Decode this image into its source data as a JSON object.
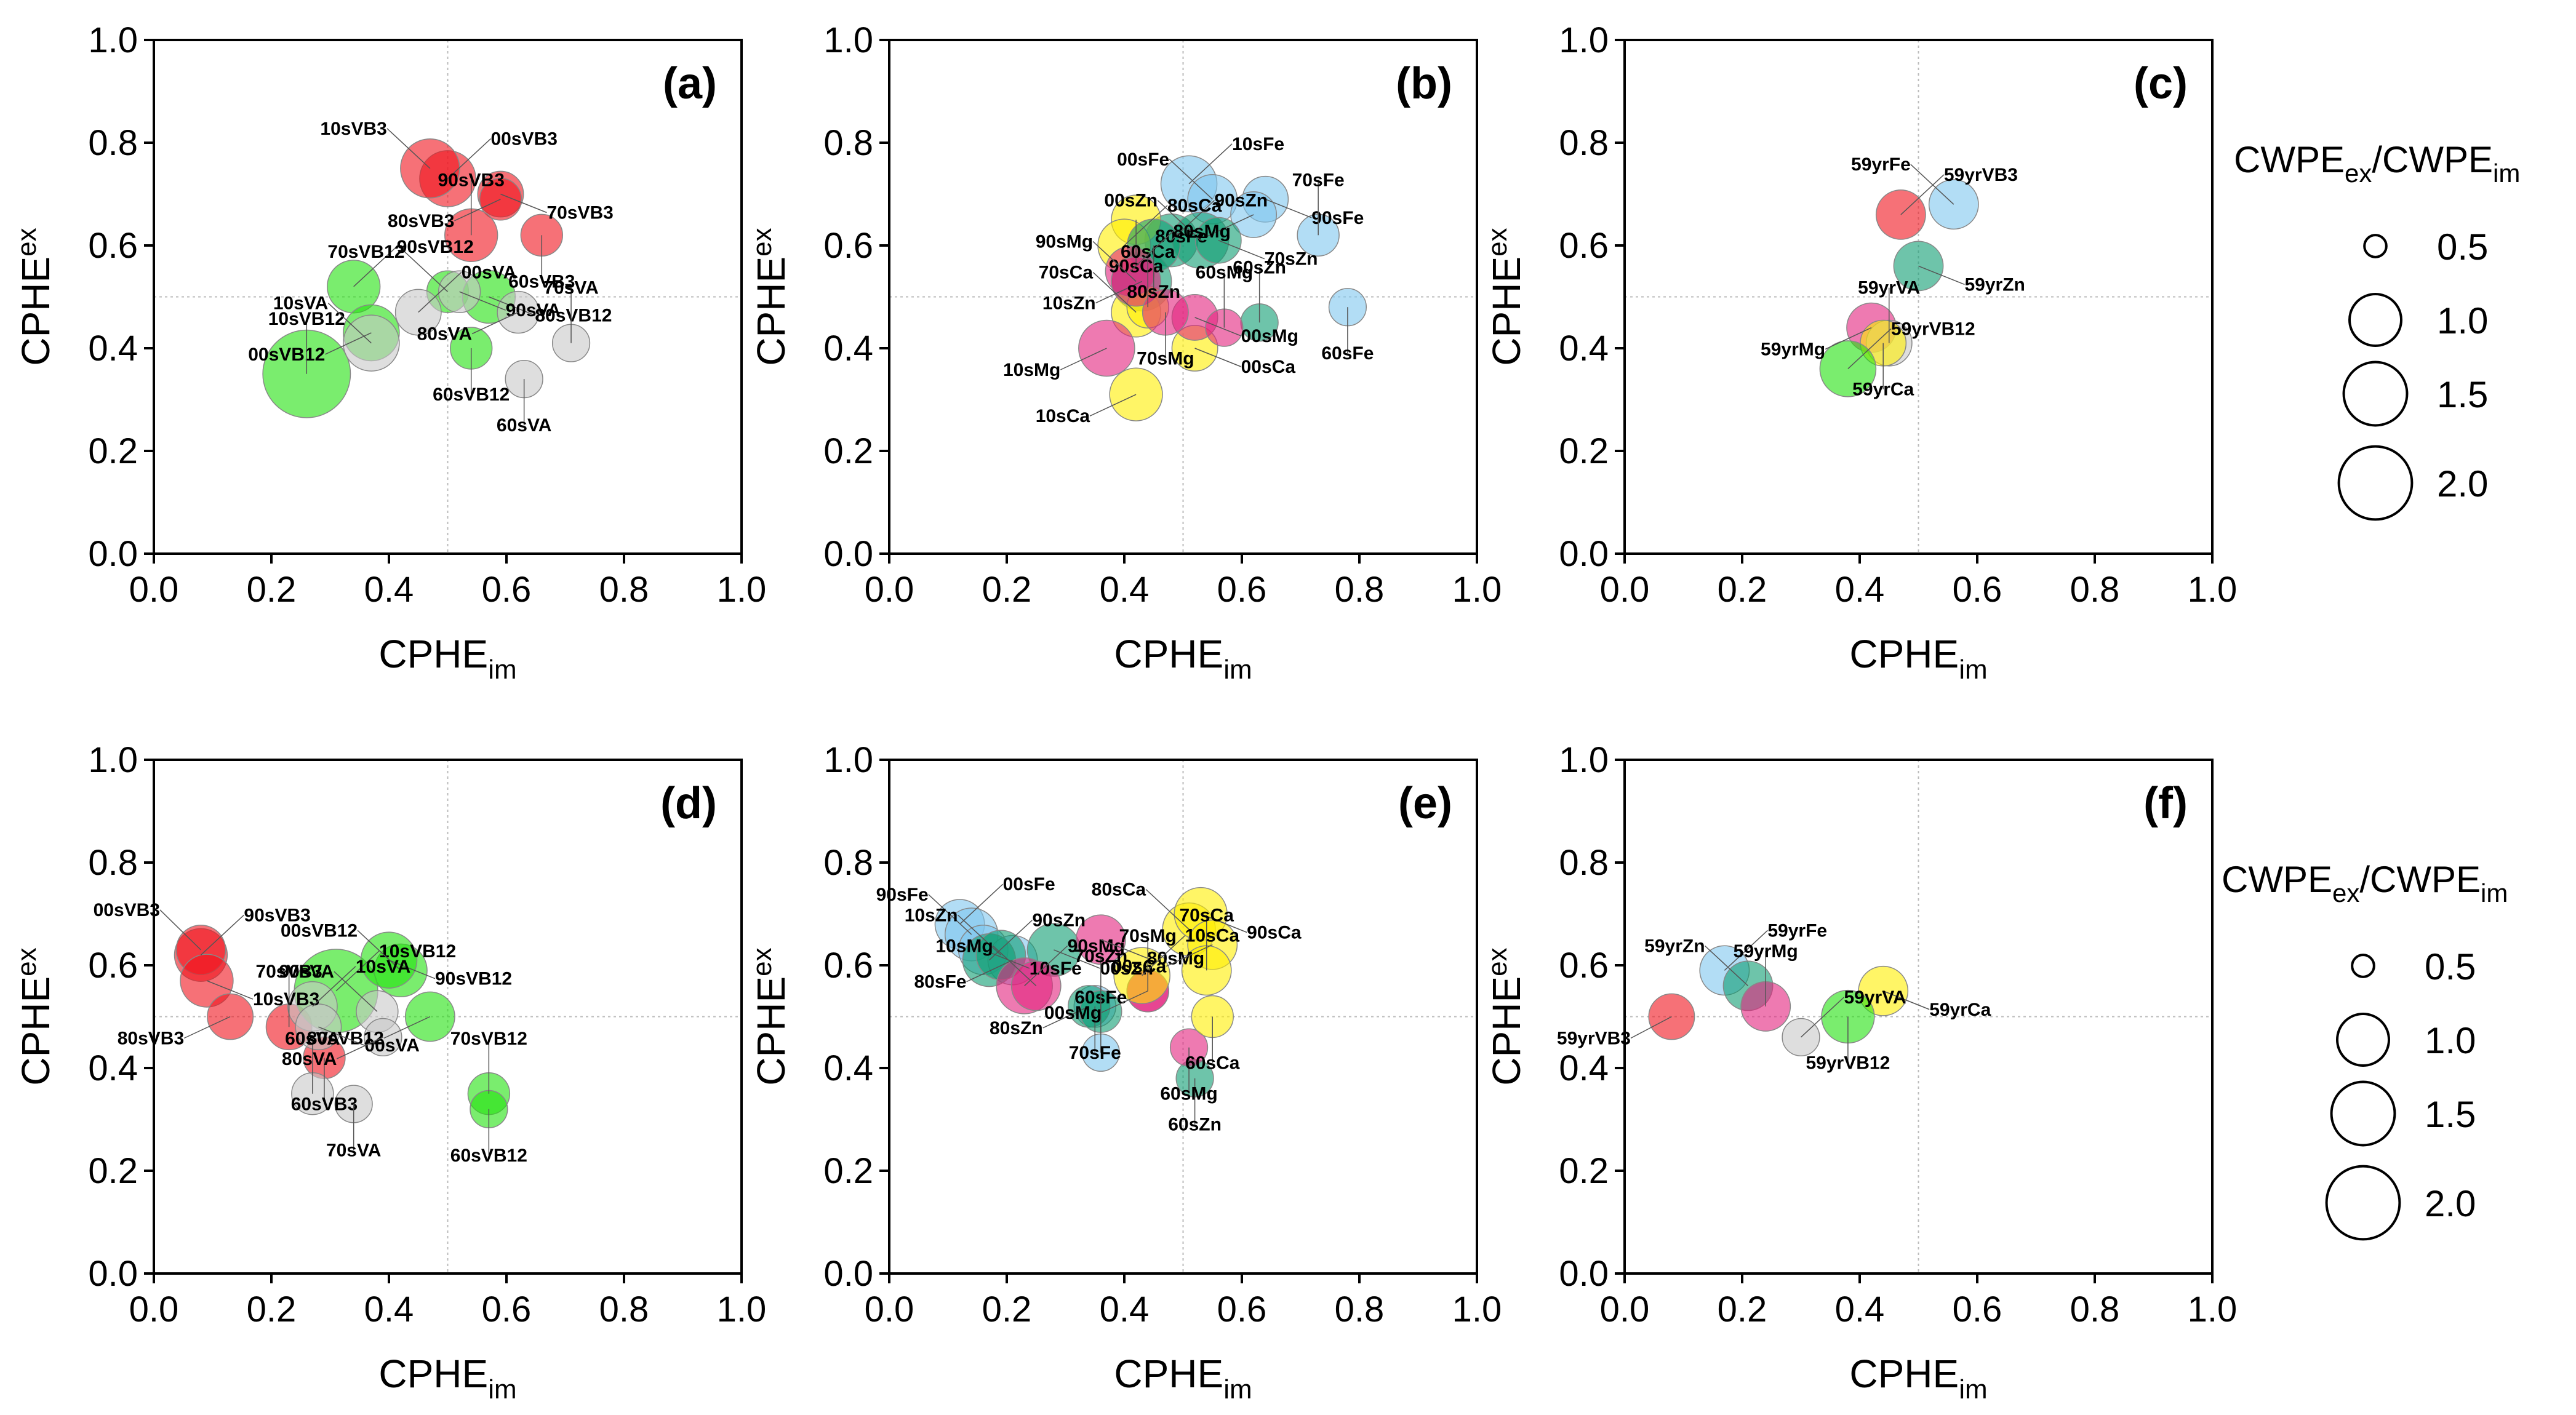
{
  "figure_title": "CPHE bubble plots",
  "colors": {
    "VB3": "#f0131c",
    "VB12": "#22e10e",
    "VA": "#c8c8c8",
    "Fe": "#7fc6ee",
    "Zn": "#0e9d71",
    "Mg": "#e2227d",
    "Ca": "#ffee00"
  },
  "chart_data": [
    {
      "panel": "(a)",
      "type": "scatter",
      "xlabel": "CPHE",
      "xlabel_sub": "im",
      "ylabel": "CPHE",
      "ylabel_sub": "ex",
      "xlim": [
        0,
        1
      ],
      "ylim": [
        0,
        1
      ],
      "xticks": [
        "0.0",
        "0.2",
        "0.4",
        "0.6",
        "0.8",
        "1.0"
      ],
      "yticks": [
        "0.0",
        "0.2",
        "0.4",
        "0.6",
        "0.8",
        "1.0"
      ],
      "points": [
        {
          "label": "00sVB3",
          "group": "VB3",
          "x": 0.5,
          "y": 0.73,
          "size": 0.9
        },
        {
          "label": "10sVB3",
          "group": "VB3",
          "x": 0.47,
          "y": 0.75,
          "size": 1.0
        },
        {
          "label": "70sVB3",
          "group": "VB3",
          "x": 0.59,
          "y": 0.7,
          "size": 0.6
        },
        {
          "label": "80sVB3",
          "group": "VB3",
          "x": 0.59,
          "y": 0.69,
          "size": 0.5
        },
        {
          "label": "90sVB3",
          "group": "VB3",
          "x": 0.54,
          "y": 0.62,
          "size": 0.8
        },
        {
          "label": "60sVB3",
          "group": "VB3",
          "x": 0.66,
          "y": 0.62,
          "size": 0.5
        },
        {
          "label": "90sVB12",
          "group": "VB12",
          "x": 0.34,
          "y": 0.52,
          "size": 0.8
        },
        {
          "label": "70sVB12",
          "group": "VB12",
          "x": 0.5,
          "y": 0.51,
          "size": 0.5
        },
        {
          "label": "80sVB12",
          "group": "VB12",
          "x": 0.57,
          "y": 0.5,
          "size": 0.8
        },
        {
          "label": "00sVB12",
          "group": "VB12",
          "x": 0.37,
          "y": 0.43,
          "size": 0.9
        },
        {
          "label": "10sVB12",
          "group": "VB12",
          "x": 0.26,
          "y": 0.35,
          "size": 2.2
        },
        {
          "label": "60sVB12",
          "group": "VB12",
          "x": 0.54,
          "y": 0.4,
          "size": 0.5
        },
        {
          "label": "00sVA",
          "group": "VA",
          "x": 0.45,
          "y": 0.47,
          "size": 0.6
        },
        {
          "label": "10sVA",
          "group": "VA",
          "x": 0.37,
          "y": 0.41,
          "size": 0.9
        },
        {
          "label": "90sVA",
          "group": "VA",
          "x": 0.52,
          "y": 0.51,
          "size": 0.5
        },
        {
          "label": "80sVA",
          "group": "VA",
          "x": 0.62,
          "y": 0.47,
          "size": 0.5
        },
        {
          "label": "70sVA",
          "group": "VA",
          "x": 0.71,
          "y": 0.41,
          "size": 0.4
        },
        {
          "label": "60sVA",
          "group": "VA",
          "x": 0.63,
          "y": 0.34,
          "size": 0.4
        }
      ]
    },
    {
      "panel": "(b)",
      "type": "scatter",
      "xlabel": "CPHE",
      "xlabel_sub": "im",
      "ylabel": "CPHE",
      "ylabel_sub": "ex",
      "xlim": [
        0,
        1
      ],
      "ylim": [
        0,
        1
      ],
      "xticks": [
        "0.0",
        "0.2",
        "0.4",
        "0.6",
        "0.8",
        "1.0"
      ],
      "yticks": [
        "0.0",
        "0.2",
        "0.4",
        "0.6",
        "0.8",
        "1.0"
      ],
      "points": [
        {
          "label": "10sFe",
          "group": "Fe",
          "x": 0.51,
          "y": 0.72,
          "size": 0.9
        },
        {
          "label": "00sFe",
          "group": "Fe",
          "x": 0.55,
          "y": 0.69,
          "size": 0.7
        },
        {
          "label": "90sFe",
          "group": "Fe",
          "x": 0.64,
          "y": 0.69,
          "size": 0.6
        },
        {
          "label": "80sFe",
          "group": "Fe",
          "x": 0.62,
          "y": 0.66,
          "size": 0.6
        },
        {
          "label": "70sFe",
          "group": "Fe",
          "x": 0.73,
          "y": 0.62,
          "size": 0.5
        },
        {
          "label": "60sFe",
          "group": "Fe",
          "x": 0.78,
          "y": 0.48,
          "size": 0.4
        },
        {
          "label": "90sZn",
          "group": "Zn",
          "x": 0.48,
          "y": 0.61,
          "size": 0.8
        },
        {
          "label": "00sZn",
          "group": "Zn",
          "x": 0.53,
          "y": 0.61,
          "size": 0.9
        },
        {
          "label": "70sZn",
          "group": "Zn",
          "x": 0.56,
          "y": 0.61,
          "size": 0.6
        },
        {
          "label": "10sZn",
          "group": "Zn",
          "x": 0.43,
          "y": 0.53,
          "size": 1.0
        },
        {
          "label": "60sZn",
          "group": "Zn",
          "x": 0.63,
          "y": 0.45,
          "size": 0.4
        },
        {
          "label": "90sCa",
          "group": "Ca",
          "x": 0.42,
          "y": 0.65,
          "size": 0.7
        },
        {
          "label": "80sCa",
          "group": "Ca",
          "x": 0.4,
          "y": 0.6,
          "size": 0.8
        },
        {
          "label": "70sCa",
          "group": "Ca",
          "x": 0.42,
          "y": 0.47,
          "size": 0.7
        },
        {
          "label": "00sCa",
          "group": "Ca",
          "x": 0.52,
          "y": 0.4,
          "size": 0.6
        },
        {
          "label": "10sCa",
          "group": "Ca",
          "x": 0.42,
          "y": 0.31,
          "size": 0.8
        },
        {
          "label": "60sCa",
          "group": "Ca",
          "x": 0.44,
          "y": 0.48,
          "size": 0.5
        },
        {
          "label": "80sZn",
          "group": "Zn",
          "x": 0.45,
          "y": 0.6,
          "size": 0.8
        },
        {
          "label": "80sMg",
          "group": "Mg",
          "x": 0.41,
          "y": 0.55,
          "size": 0.7
        },
        {
          "label": "90sMg",
          "group": "Mg",
          "x": 0.42,
          "y": 0.53,
          "size": 0.7
        },
        {
          "label": "00sMg",
          "group": "Mg",
          "x": 0.52,
          "y": 0.46,
          "size": 0.6
        },
        {
          "label": "10sMg",
          "group": "Mg",
          "x": 0.37,
          "y": 0.4,
          "size": 0.9
        },
        {
          "label": "60sMg",
          "group": "Mg",
          "x": 0.57,
          "y": 0.44,
          "size": 0.4
        },
        {
          "label": "70sMg",
          "group": "Mg",
          "x": 0.47,
          "y": 0.47,
          "size": 0.6
        }
      ]
    },
    {
      "panel": "(c)",
      "type": "scatter",
      "xlabel": "CPHE",
      "xlabel_sub": "im",
      "ylabel": "CPHE",
      "ylabel_sub": "ex",
      "xlim": [
        0,
        1
      ],
      "ylim": [
        0,
        1
      ],
      "xticks": [
        "0.0",
        "0.2",
        "0.4",
        "0.6",
        "0.8",
        "1.0"
      ],
      "yticks": [
        "0.0",
        "0.2",
        "0.4",
        "0.6",
        "0.8",
        "1.0"
      ],
      "points": [
        {
          "label": "59yrVB3",
          "group": "VB3",
          "x": 0.47,
          "y": 0.66,
          "size": 0.7
        },
        {
          "label": "59yrFe",
          "group": "Fe",
          "x": 0.56,
          "y": 0.68,
          "size": 0.7
        },
        {
          "label": "59yrZn",
          "group": "Zn",
          "x": 0.5,
          "y": 0.56,
          "size": 0.7
        },
        {
          "label": "59yrMg",
          "group": "Mg",
          "x": 0.42,
          "y": 0.44,
          "size": 0.7
        },
        {
          "label": "59yrVA",
          "group": "VA",
          "x": 0.45,
          "y": 0.41,
          "size": 0.6
        },
        {
          "label": "59yrCa",
          "group": "Ca",
          "x": 0.44,
          "y": 0.41,
          "size": 0.6
        },
        {
          "label": "59yrVB12",
          "group": "VB12",
          "x": 0.38,
          "y": 0.36,
          "size": 0.9
        }
      ]
    },
    {
      "panel": "(d)",
      "type": "scatter",
      "xlabel": "CPHE",
      "xlabel_sub": "im",
      "ylabel": "CPHE",
      "ylabel_sub": "ex",
      "xlim": [
        0,
        1
      ],
      "ylim": [
        0,
        1
      ],
      "xticks": [
        "0.0",
        "0.2",
        "0.4",
        "0.6",
        "0.8",
        "1.0"
      ],
      "yticks": [
        "0.0",
        "0.2",
        "0.4",
        "0.6",
        "0.8",
        "1.0"
      ],
      "points": [
        {
          "label": "90sVB3",
          "group": "VB3",
          "x": 0.08,
          "y": 0.62,
          "size": 0.8
        },
        {
          "label": "00sVB3",
          "group": "VB3",
          "x": 0.08,
          "y": 0.63,
          "size": 0.7
        },
        {
          "label": "10sVB3",
          "group": "VB3",
          "x": 0.09,
          "y": 0.57,
          "size": 0.8
        },
        {
          "label": "80sVB3",
          "group": "VB3",
          "x": 0.13,
          "y": 0.5,
          "size": 0.6
        },
        {
          "label": "70sVB3",
          "group": "VB3",
          "x": 0.23,
          "y": 0.48,
          "size": 0.6
        },
        {
          "label": "60sVB3",
          "group": "VB3",
          "x": 0.29,
          "y": 0.42,
          "size": 0.5
        },
        {
          "label": "10sVB12",
          "group": "VB12",
          "x": 0.31,
          "y": 0.55,
          "size": 2.0
        },
        {
          "label": "00sVB12",
          "group": "VB12",
          "x": 0.42,
          "y": 0.59,
          "size": 0.8
        },
        {
          "label": "90sVB12",
          "group": "VB12",
          "x": 0.4,
          "y": 0.61,
          "size": 0.9
        },
        {
          "label": "80sVB12",
          "group": "VB12",
          "x": 0.47,
          "y": 0.5,
          "size": 0.7
        },
        {
          "label": "70sVB12",
          "group": "VB12",
          "x": 0.57,
          "y": 0.35,
          "size": 0.5
        },
        {
          "label": "60sVB12",
          "group": "VB12",
          "x": 0.57,
          "y": 0.32,
          "size": 0.4
        },
        {
          "label": "10sVA",
          "group": "VA",
          "x": 0.27,
          "y": 0.52,
          "size": 0.7
        },
        {
          "label": "90sVA",
          "group": "VA",
          "x": 0.38,
          "y": 0.51,
          "size": 0.5
        },
        {
          "label": "00sVA",
          "group": "VA",
          "x": 0.28,
          "y": 0.48,
          "size": 0.6
        },
        {
          "label": "80sVA",
          "group": "VA",
          "x": 0.39,
          "y": 0.46,
          "size": 0.4
        },
        {
          "label": "60sVA",
          "group": "VA",
          "x": 0.27,
          "y": 0.35,
          "size": 0.5
        },
        {
          "label": "70sVA",
          "group": "VA",
          "x": 0.34,
          "y": 0.33,
          "size": 0.4
        }
      ]
    },
    {
      "panel": "(e)",
      "type": "scatter",
      "xlabel": "CPHE",
      "xlabel_sub": "im",
      "ylabel": "CPHE",
      "ylabel_sub": "ex",
      "xlim": [
        0,
        1
      ],
      "ylim": [
        0,
        1
      ],
      "xticks": [
        "0.0",
        "0.2",
        "0.4",
        "0.6",
        "0.8",
        "1.0"
      ],
      "yticks": [
        "0.0",
        "0.2",
        "0.4",
        "0.6",
        "0.8",
        "1.0"
      ],
      "points": [
        {
          "label": "00sFe",
          "group": "Fe",
          "x": 0.12,
          "y": 0.68,
          "size": 0.7
        },
        {
          "label": "90sFe",
          "group": "Fe",
          "x": 0.14,
          "y": 0.66,
          "size": 0.8
        },
        {
          "label": "10sFe",
          "group": "Fe",
          "x": 0.16,
          "y": 0.63,
          "size": 0.7
        },
        {
          "label": "80sFe",
          "group": "Fe",
          "x": 0.21,
          "y": 0.61,
          "size": 0.7
        },
        {
          "label": "60sFe",
          "group": "Fe",
          "x": 0.36,
          "y": 0.43,
          "size": 0.4
        },
        {
          "label": "70sFe",
          "group": "Fe",
          "x": 0.35,
          "y": 0.52,
          "size": 0.5
        },
        {
          "label": "90sZn",
          "group": "Zn",
          "x": 0.17,
          "y": 0.61,
          "size": 0.8
        },
        {
          "label": "10sZn",
          "group": "Zn",
          "x": 0.19,
          "y": 0.62,
          "size": 0.7
        },
        {
          "label": "00sZn",
          "group": "Zn",
          "x": 0.28,
          "y": 0.63,
          "size": 0.8
        },
        {
          "label": "80sZn",
          "group": "Zn",
          "x": 0.34,
          "y": 0.52,
          "size": 0.5
        },
        {
          "label": "70sZn",
          "group": "Zn",
          "x": 0.36,
          "y": 0.51,
          "size": 0.5
        },
        {
          "label": "60sZn",
          "group": "Zn",
          "x": 0.52,
          "y": 0.38,
          "size": 0.4
        },
        {
          "label": "90sMg",
          "group": "Mg",
          "x": 0.23,
          "y": 0.56,
          "size": 0.9
        },
        {
          "label": "10sMg",
          "group": "Mg",
          "x": 0.25,
          "y": 0.56,
          "size": 0.7
        },
        {
          "label": "80sMg",
          "group": "Mg",
          "x": 0.36,
          "y": 0.65,
          "size": 0.7
        },
        {
          "label": "00sMg",
          "group": "Mg",
          "x": 0.44,
          "y": 0.55,
          "size": 0.5
        },
        {
          "label": "70sMg",
          "group": "Mg",
          "x": 0.44,
          "y": 0.55,
          "size": 0.5
        },
        {
          "label": "60sMg",
          "group": "Mg",
          "x": 0.51,
          "y": 0.44,
          "size": 0.4
        },
        {
          "label": "10sCa",
          "group": "Ca",
          "x": 0.43,
          "y": 0.58,
          "size": 0.9
        },
        {
          "label": "80sCa",
          "group": "Ca",
          "x": 0.51,
          "y": 0.67,
          "size": 0.8
        },
        {
          "label": "90sCa",
          "group": "Ca",
          "x": 0.53,
          "y": 0.7,
          "size": 0.8
        },
        {
          "label": "00sCa",
          "group": "Ca",
          "x": 0.55,
          "y": 0.64,
          "size": 0.7
        },
        {
          "label": "70sCa",
          "group": "Ca",
          "x": 0.54,
          "y": 0.59,
          "size": 0.7
        },
        {
          "label": "60sCa",
          "group": "Ca",
          "x": 0.55,
          "y": 0.5,
          "size": 0.5
        }
      ]
    },
    {
      "panel": "(f)",
      "type": "scatter",
      "xlabel": "CPHE",
      "xlabel_sub": "im",
      "ylabel": "CPHE",
      "ylabel_sub": "ex",
      "xlim": [
        0,
        1
      ],
      "ylim": [
        0,
        1
      ],
      "xticks": [
        "0.0",
        "0.2",
        "0.4",
        "0.6",
        "0.8",
        "1.0"
      ],
      "yticks": [
        "0.0",
        "0.2",
        "0.4",
        "0.6",
        "0.8",
        "1.0"
      ],
      "points": [
        {
          "label": "59yrFe",
          "group": "Fe",
          "x": 0.17,
          "y": 0.59,
          "size": 0.7
        },
        {
          "label": "59yrZn",
          "group": "Zn",
          "x": 0.21,
          "y": 0.56,
          "size": 0.7
        },
        {
          "label": "59yrCa",
          "group": "Ca",
          "x": 0.44,
          "y": 0.55,
          "size": 0.7
        },
        {
          "label": "59yrVB3",
          "group": "VB3",
          "x": 0.08,
          "y": 0.5,
          "size": 0.6
        },
        {
          "label": "59yrMg",
          "group": "Mg",
          "x": 0.24,
          "y": 0.52,
          "size": 0.7
        },
        {
          "label": "59yrVB12",
          "group": "VB12",
          "x": 0.38,
          "y": 0.5,
          "size": 0.8
        },
        {
          "label": "59yrVA",
          "group": "VA",
          "x": 0.3,
          "y": 0.46,
          "size": 0.4
        }
      ]
    }
  ],
  "legends": [
    {
      "title": "CWPE",
      "title_sub": "ex",
      "sep": "/",
      "title2": "CWPE",
      "title2_sub": "im",
      "items": [
        {
          "value": 0.5,
          "label": "0.5"
        },
        {
          "value": 1.0,
          "label": "1.0"
        },
        {
          "value": 1.5,
          "label": "1.5"
        },
        {
          "value": 2.0,
          "label": "2.0"
        }
      ]
    },
    {
      "title": "CWPE",
      "title_sub": "ex",
      "sep": "/",
      "title2": "CWPE",
      "title2_sub": "im",
      "items": [
        {
          "value": 0.5,
          "label": "0.5"
        },
        {
          "value": 1.0,
          "label": "1.0"
        },
        {
          "value": 1.5,
          "label": "1.5"
        },
        {
          "value": 2.0,
          "label": "2.0"
        }
      ]
    }
  ]
}
